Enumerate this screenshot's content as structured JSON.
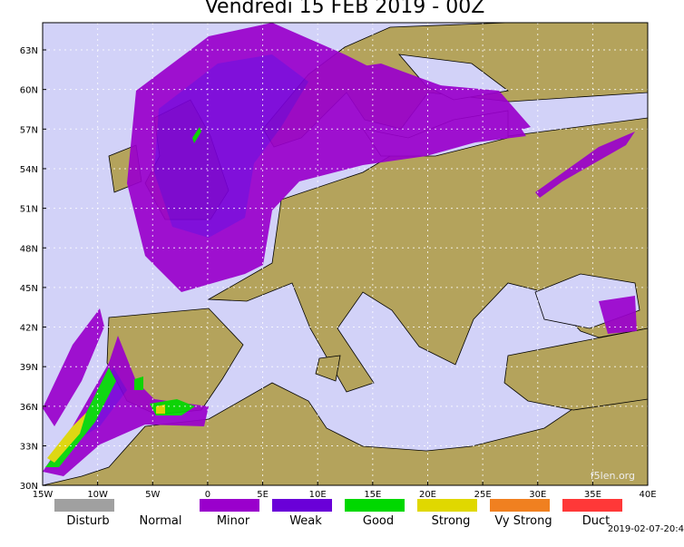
{
  "header": {
    "title": "Vendredi 15 FEB 2019 - 00Z"
  },
  "axes": {
    "lat_labels": [
      "63N",
      "60N",
      "57N",
      "54N",
      "51N",
      "48N",
      "45N",
      "42N",
      "39N",
      "36N",
      "33N",
      "30N"
    ],
    "lon_labels": [
      "15W",
      "10W",
      "5W",
      "0",
      "5E",
      "10E",
      "15E",
      "20E",
      "25E",
      "30E",
      "35E",
      "40E"
    ]
  },
  "legend": {
    "items": [
      {
        "label": "Disturb",
        "color": "#a0a0a0"
      },
      {
        "label": "Normal",
        "color": "#ffffff"
      },
      {
        "label": "Minor",
        "color": "#9a00cc"
      },
      {
        "label": "Weak",
        "color": "#6a00d8"
      },
      {
        "label": "Good",
        "color": "#00d800"
      },
      {
        "label": "Strong",
        "color": "#e0d800"
      },
      {
        "label": "Vy Strong",
        "color": "#f08020"
      },
      {
        "label": "Duct",
        "color": "#ff3838"
      }
    ]
  },
  "footer": {
    "credit": "f5len.org",
    "timestamp": "2019-02-07-20:4"
  }
}
